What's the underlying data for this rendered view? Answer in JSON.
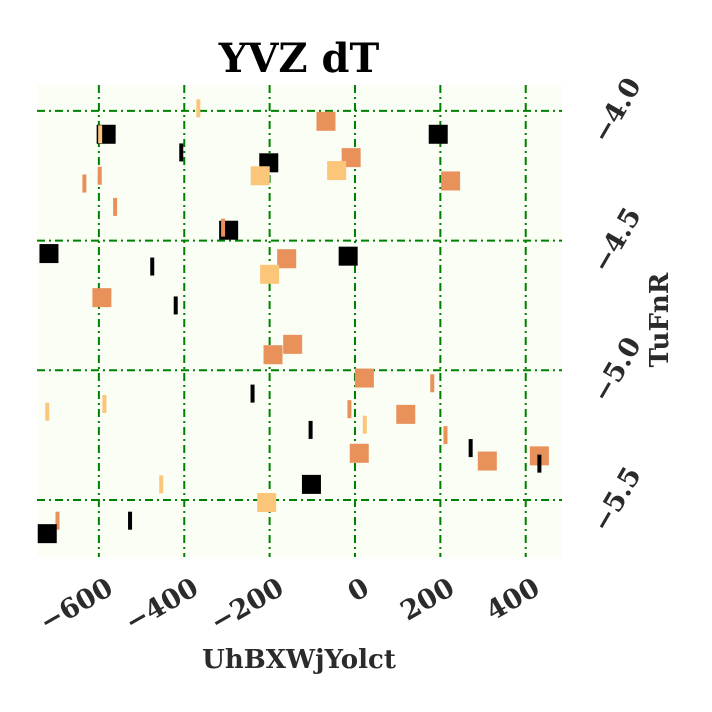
{
  "chart_data": {
    "type": "scatter",
    "title": "YVZ dT",
    "xlabel": "UhBXWjYolct",
    "ylabel": "TuFnR",
    "xlim": [
      -745,
      485
    ],
    "ylim": [
      -5.72,
      -3.9
    ],
    "y_axis_side": "right",
    "x_ticks": [
      -600,
      -400,
      -200,
      0,
      200,
      400
    ],
    "x_tick_labels": [
      "−600",
      "−400",
      "−200",
      "0",
      "200",
      "400"
    ],
    "y_ticks": [
      -4.0,
      -4.5,
      -5.0,
      -5.5
    ],
    "y_tick_labels": [
      "−4.0",
      "−4.5",
      "−5.0",
      "−5.5"
    ],
    "grid": true,
    "grid_style": "dash-dot",
    "grid_color": "#008000",
    "background_color": "#fafef4",
    "colors": {
      "black": "#000000",
      "orange": "#e8915a",
      "yellow": "#fcc67a"
    },
    "points": [
      {
        "x": -367,
        "y": -3.99,
        "color": "yellow",
        "marker": "bar"
      },
      {
        "x": -583,
        "y": -4.09,
        "color": "black",
        "marker": "square"
      },
      {
        "x": -597,
        "y": -4.09,
        "color": "yellow",
        "marker": "bar"
      },
      {
        "x": -68,
        "y": -4.04,
        "color": "orange",
        "marker": "square"
      },
      {
        "x": 195,
        "y": -4.09,
        "color": "black",
        "marker": "square"
      },
      {
        "x": -407,
        "y": -4.16,
        "color": "black",
        "marker": "bar"
      },
      {
        "x": -202,
        "y": -4.2,
        "color": "black",
        "marker": "square"
      },
      {
        "x": -9,
        "y": -4.18,
        "color": "orange",
        "marker": "square"
      },
      {
        "x": -43,
        "y": -4.23,
        "color": "yellow",
        "marker": "square"
      },
      {
        "x": -222,
        "y": -4.25,
        "color": "yellow",
        "marker": "square"
      },
      {
        "x": -598,
        "y": -4.25,
        "color": "orange",
        "marker": "bar"
      },
      {
        "x": -634,
        "y": -4.28,
        "color": "orange",
        "marker": "bar"
      },
      {
        "x": 224,
        "y": -4.27,
        "color": "orange",
        "marker": "square"
      },
      {
        "x": -562,
        "y": -4.37,
        "color": "orange",
        "marker": "bar"
      },
      {
        "x": -296,
        "y": -4.46,
        "color": "black",
        "marker": "square"
      },
      {
        "x": -309,
        "y": -4.45,
        "color": "orange",
        "marker": "bar"
      },
      {
        "x": -717,
        "y": -4.55,
        "color": "black",
        "marker": "square"
      },
      {
        "x": -16,
        "y": -4.56,
        "color": "black",
        "marker": "square"
      },
      {
        "x": -160,
        "y": -4.57,
        "color": "orange",
        "marker": "square"
      },
      {
        "x": -475,
        "y": -4.6,
        "color": "black",
        "marker": "bar"
      },
      {
        "x": -200,
        "y": -4.63,
        "color": "yellow",
        "marker": "square"
      },
      {
        "x": -593,
        "y": -4.72,
        "color": "orange",
        "marker": "square"
      },
      {
        "x": -420,
        "y": -4.75,
        "color": "black",
        "marker": "bar"
      },
      {
        "x": -146,
        "y": -4.9,
        "color": "orange",
        "marker": "square"
      },
      {
        "x": -192,
        "y": -4.94,
        "color": "orange",
        "marker": "square"
      },
      {
        "x": 22,
        "y": -5.03,
        "color": "orange",
        "marker": "square"
      },
      {
        "x": 181,
        "y": -5.05,
        "color": "orange",
        "marker": "bar"
      },
      {
        "x": -240,
        "y": -5.09,
        "color": "black",
        "marker": "bar"
      },
      {
        "x": -587,
        "y": -5.13,
        "color": "yellow",
        "marker": "bar"
      },
      {
        "x": -721,
        "y": -5.16,
        "color": "yellow",
        "marker": "bar"
      },
      {
        "x": -13,
        "y": -5.15,
        "color": "orange",
        "marker": "bar"
      },
      {
        "x": 119,
        "y": -5.17,
        "color": "orange",
        "marker": "square"
      },
      {
        "x": 23,
        "y": -5.21,
        "color": "yellow",
        "marker": "bar"
      },
      {
        "x": -104,
        "y": -5.23,
        "color": "black",
        "marker": "bar"
      },
      {
        "x": 212,
        "y": -5.25,
        "color": "orange",
        "marker": "bar"
      },
      {
        "x": 271,
        "y": -5.3,
        "color": "black",
        "marker": "bar"
      },
      {
        "x": 10,
        "y": -5.32,
        "color": "orange",
        "marker": "square"
      },
      {
        "x": 310,
        "y": -5.35,
        "color": "orange",
        "marker": "square"
      },
      {
        "x": 432,
        "y": -5.33,
        "color": "orange",
        "marker": "square"
      },
      {
        "x": 432,
        "y": -5.36,
        "color": "black",
        "marker": "bar"
      },
      {
        "x": -454,
        "y": -5.44,
        "color": "yellow",
        "marker": "bar"
      },
      {
        "x": -102,
        "y": -5.44,
        "color": "black",
        "marker": "square"
      },
      {
        "x": -207,
        "y": -5.51,
        "color": "yellow",
        "marker": "square"
      },
      {
        "x": -527,
        "y": -5.58,
        "color": "black",
        "marker": "bar"
      },
      {
        "x": -697,
        "y": -5.58,
        "color": "orange",
        "marker": "bar"
      },
      {
        "x": -721,
        "y": -5.63,
        "color": "black",
        "marker": "square"
      }
    ]
  }
}
